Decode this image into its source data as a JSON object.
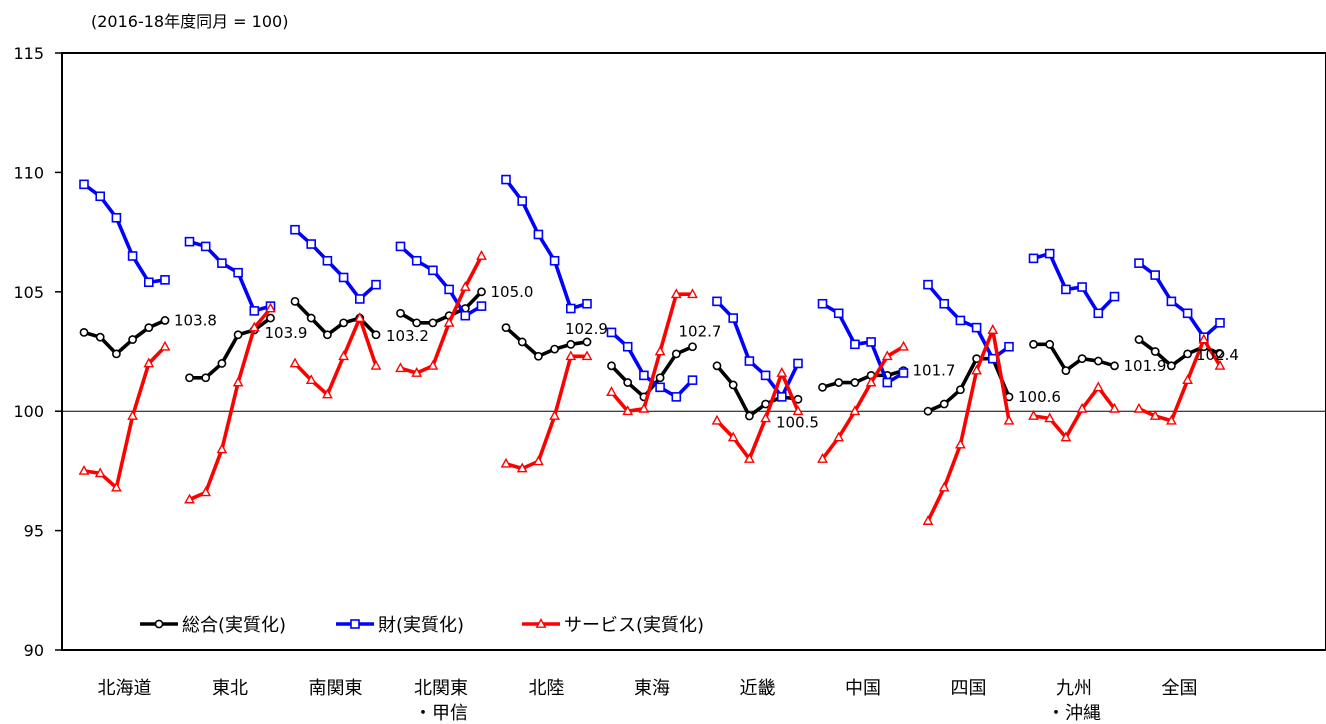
{
  "chart_data": {
    "type": "line",
    "subtitle": "(2016-18年度同月 = 100)",
    "ylim": [
      90,
      115
    ],
    "yticks": [
      90,
      95,
      100,
      105,
      110,
      115
    ],
    "reference_line": 100,
    "regions": [
      {
        "label": "北海道",
        "sublabel": ""
      },
      {
        "label": "東北",
        "sublabel": ""
      },
      {
        "label": "南関東",
        "sublabel": ""
      },
      {
        "label": "北関東",
        "sublabel": "・甲信"
      },
      {
        "label": "北陸",
        "sublabel": ""
      },
      {
        "label": "東海",
        "sublabel": ""
      },
      {
        "label": "近畿",
        "sublabel": ""
      },
      {
        "label": "中国",
        "sublabel": ""
      },
      {
        "label": "四国",
        "sublabel": ""
      },
      {
        "label": "九州",
        "sublabel": "・沖縄"
      },
      {
        "label": "全国",
        "sublabel": ""
      }
    ],
    "series": [
      {
        "name": "総合(実質化)",
        "color": "#000000",
        "marker": "circle",
        "values": [
          [
            103.3,
            103.1,
            102.4,
            103.0,
            103.5,
            103.8
          ],
          [
            101.4,
            101.4,
            102.0,
            103.2,
            103.4,
            103.9
          ],
          [
            104.6,
            103.9,
            103.2,
            103.7,
            103.9,
            103.2
          ],
          [
            104.1,
            103.7,
            103.7,
            104.0,
            104.3,
            105.0
          ],
          [
            103.5,
            102.9,
            102.3,
            102.6,
            102.8,
            102.9
          ],
          [
            101.9,
            101.2,
            100.6,
            101.4,
            102.4,
            102.7
          ],
          [
            101.9,
            101.1,
            99.8,
            100.3,
            100.6,
            100.5
          ],
          [
            101.0,
            101.2,
            101.2,
            101.5,
            101.5,
            101.7
          ],
          [
            100.0,
            100.3,
            100.9,
            102.2,
            102.2,
            100.6
          ],
          [
            102.8,
            102.8,
            101.7,
            102.2,
            102.1,
            101.9
          ],
          [
            103.0,
            102.5,
            101.9,
            102.4,
            102.7,
            102.4
          ]
        ]
      },
      {
        "name": "財(実質化)",
        "color": "#0000ff",
        "marker": "square",
        "values": [
          [
            109.5,
            109.0,
            108.1,
            106.5,
            105.4,
            105.5
          ],
          [
            107.1,
            106.9,
            106.2,
            105.8,
            104.2,
            104.4
          ],
          [
            107.6,
            107.0,
            106.3,
            105.6,
            104.7,
            105.3
          ],
          [
            106.9,
            106.3,
            105.9,
            105.1,
            104.0,
            104.4
          ],
          [
            109.7,
            108.8,
            107.4,
            106.3,
            104.3,
            104.5
          ],
          [
            103.3,
            102.7,
            101.5,
            101.0,
            100.6,
            101.3
          ],
          [
            104.6,
            103.9,
            102.1,
            101.5,
            100.6,
            102.0
          ],
          [
            104.5,
            104.1,
            102.8,
            102.9,
            101.2,
            101.6
          ],
          [
            105.3,
            104.5,
            103.8,
            103.5,
            102.2,
            102.7
          ],
          [
            106.4,
            106.6,
            105.1,
            105.2,
            104.1,
            104.8
          ],
          [
            106.2,
            105.7,
            104.6,
            104.1,
            103.1,
            103.7
          ]
        ]
      },
      {
        "name": "サービス(実質化)",
        "color": "#ff0000",
        "marker": "triangle",
        "values": [
          [
            97.5,
            97.4,
            96.8,
            99.8,
            102.0,
            102.7
          ],
          [
            96.3,
            96.6,
            98.4,
            101.2,
            103.5,
            104.3
          ],
          [
            102.0,
            101.3,
            100.7,
            102.3,
            103.9,
            101.9
          ],
          [
            101.8,
            101.6,
            101.9,
            103.7,
            105.2,
            106.5
          ],
          [
            97.8,
            97.6,
            97.9,
            99.8,
            102.3,
            102.3
          ],
          [
            100.8,
            100.0,
            100.1,
            102.5,
            104.9,
            104.9
          ],
          [
            99.6,
            98.9,
            98.0,
            99.7,
            101.6,
            100.0
          ],
          [
            98.0,
            98.9,
            100.0,
            101.2,
            102.3,
            102.7
          ],
          [
            95.4,
            96.8,
            98.6,
            101.7,
            103.4,
            99.6
          ],
          [
            99.8,
            99.7,
            98.9,
            100.1,
            101.0,
            100.1
          ],
          [
            100.1,
            99.8,
            99.6,
            101.3,
            103.0,
            101.9
          ]
        ]
      }
    ],
    "data_labels": [
      "103.8",
      "103.9",
      "103.2",
      "105.0",
      "102.9",
      "102.7",
      "100.5",
      "101.7",
      "100.6",
      "101.9",
      "102.4"
    ],
    "legend_position": "bottom-left",
    "grid": false
  }
}
